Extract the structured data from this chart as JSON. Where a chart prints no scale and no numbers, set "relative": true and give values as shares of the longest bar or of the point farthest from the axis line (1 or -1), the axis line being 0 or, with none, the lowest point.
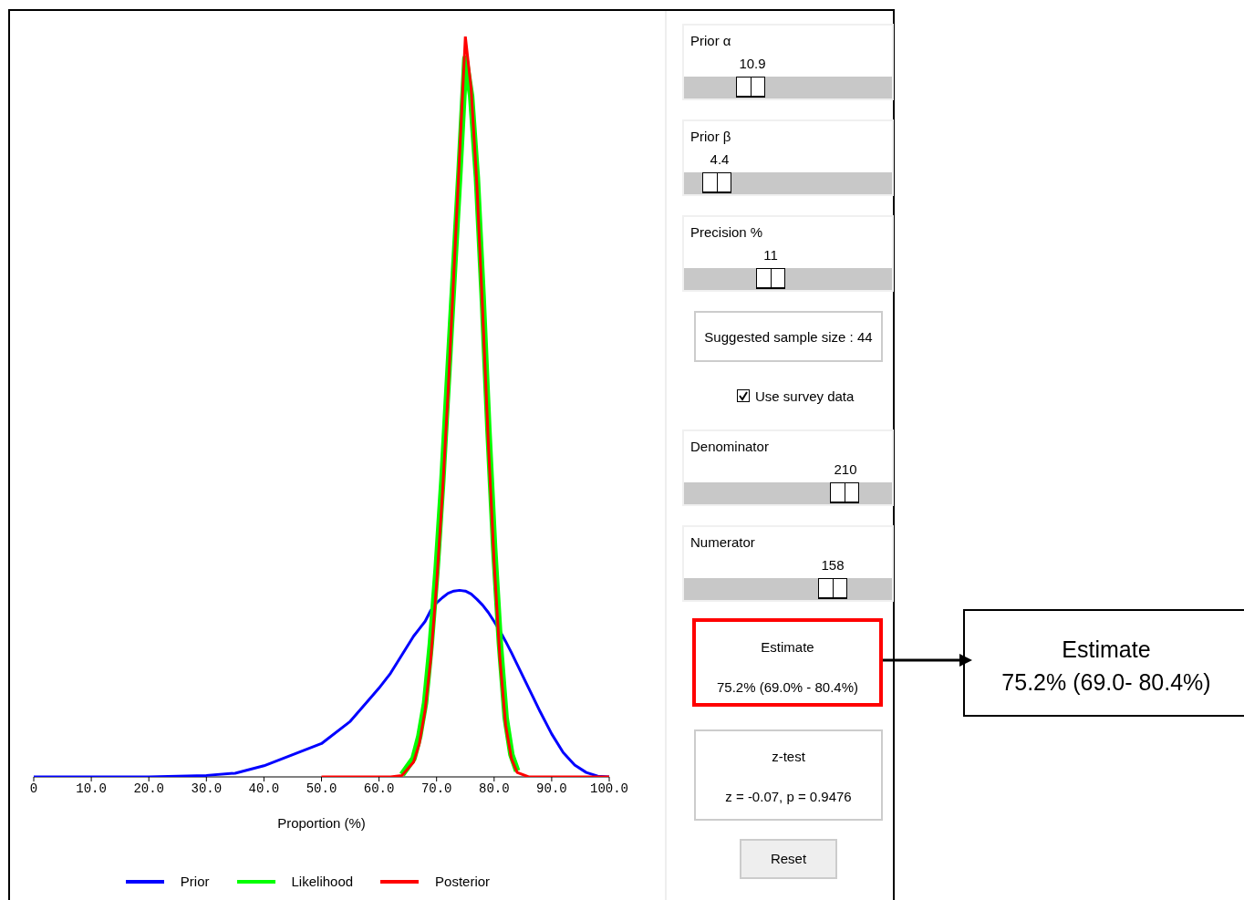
{
  "chart_data": {
    "type": "line",
    "relative": true,
    "xlabel": "Proportion (%)",
    "x": [
      0,
      10,
      20,
      30,
      35,
      40,
      45,
      50,
      55,
      60,
      62,
      64,
      66,
      67,
      68,
      69,
      70,
      71,
      72,
      73,
      74,
      75,
      76,
      77,
      78,
      79,
      80,
      81,
      82,
      83,
      84,
      86,
      88,
      90,
      92,
      94,
      96,
      98,
      100
    ],
    "xlim": [
      0,
      100
    ],
    "xticks": [
      0,
      {
        "value": 10,
        "label": "10.0"
      },
      {
        "value": 20,
        "label": "20.0"
      },
      {
        "value": 30,
        "label": "30.0"
      },
      {
        "value": 40,
        "label": "40.0"
      },
      {
        "value": 50,
        "label": "50.0"
      },
      {
        "value": 60,
        "label": "60.0"
      },
      {
        "value": 70,
        "label": "70.0"
      },
      {
        "value": 80,
        "label": "80.0"
      },
      {
        "value": 90,
        "label": "90.0"
      },
      {
        "value": 100,
        "label": "100.0"
      }
    ],
    "series": [
      {
        "name": "Prior",
        "color": "#0000ff",
        "values": [
          0,
          0,
          0,
          0.002,
          0.005,
          0.015,
          0.03,
          0.045,
          0.075,
          0.12,
          0.14,
          0.165,
          0.19,
          0.2,
          0.21,
          0.225,
          0.235,
          0.242,
          0.248,
          0.251,
          0.252,
          0.251,
          0.247,
          0.24,
          0.232,
          0.222,
          0.21,
          0.197,
          0.183,
          0.168,
          0.152,
          0.12,
          0.088,
          0.058,
          0.033,
          0.016,
          0.006,
          0.001,
          0
        ]
      },
      {
        "name": "Likelihood",
        "color": "#00ff00",
        "values": [
          null,
          null,
          null,
          null,
          null,
          null,
          null,
          null,
          null,
          null,
          null,
          0.003,
          0.025,
          0.055,
          0.1,
          0.18,
          0.28,
          0.4,
          0.54,
          0.68,
          0.82,
          0.97,
          0.92,
          0.81,
          0.65,
          0.47,
          0.31,
          0.18,
          0.08,
          0.03,
          0.008,
          null,
          null,
          null,
          null,
          null,
          null,
          null,
          null
        ]
      },
      {
        "name": "Posterior",
        "color": "#ff0000",
        "values": [
          null,
          null,
          null,
          null,
          null,
          null,
          null,
          0,
          0,
          0,
          0,
          0.002,
          0.02,
          0.045,
          0.09,
          0.16,
          0.26,
          0.38,
          0.52,
          0.68,
          0.84,
          1,
          0.93,
          0.8,
          0.63,
          0.45,
          0.29,
          0.16,
          0.07,
          0.025,
          0.006,
          0,
          0,
          0,
          0,
          0,
          0,
          0,
          0
        ]
      }
    ],
    "legend": "bottom",
    "marker": "none",
    "line_style": "solid",
    "annotations": [
      "Prior α",
      "10.9",
      "Prior β",
      "4.4",
      "Precision %",
      "11",
      "Suggested sample size : 44",
      "Use survey data",
      "Denominator",
      "210",
      "Numerator",
      "158",
      "Estimate",
      "75.2% (69.0% - 80.4%)",
      "z-test",
      "z = -0.07, p = 0.9476",
      "Reset",
      "Estimate\n75.2% (69.0- 80.4%)"
    ]
  }
}
